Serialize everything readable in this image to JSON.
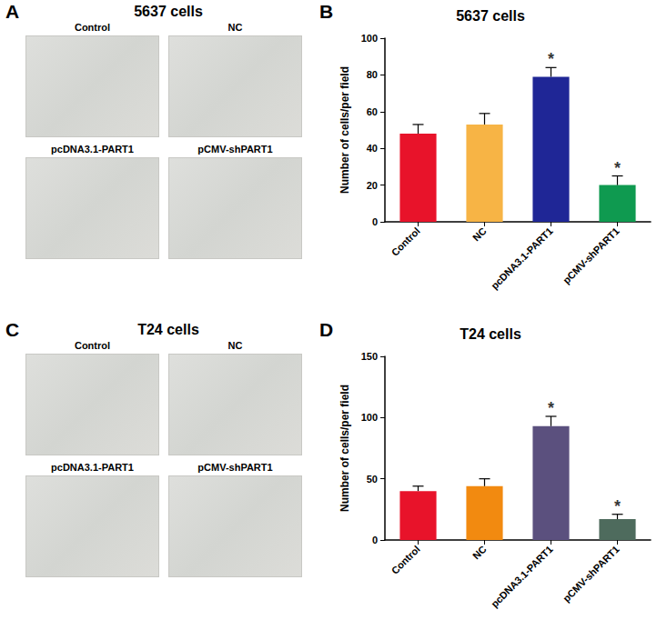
{
  "panels": [
    {
      "letter": "A",
      "title": "5637 cells",
      "images": [
        "Control",
        "NC",
        "pcDNA3.1-PART1",
        "pCMV-shPART1"
      ]
    },
    {
      "letter": "B"
    },
    {
      "letter": "C",
      "title": "T24 cells",
      "images": [
        "Control",
        "NC",
        "pcDNA3.1-PART1",
        "pCMV-shPART1"
      ]
    },
    {
      "letter": "D"
    }
  ],
  "chart_data": [
    {
      "type": "bar",
      "title": "5637 cells",
      "y_label": "Number of cells/per field",
      "categories": [
        "Control",
        "NC",
        "pcDNA3.1-PART1",
        "pCMV-shPART1"
      ],
      "values": [
        48,
        53,
        79,
        20
      ],
      "errors": [
        5,
        6,
        5,
        5
      ],
      "colors": [
        "#e8132a",
        "#f7b445",
        "#1f2696",
        "#0f9a50"
      ],
      "annotations": [
        {
          "category": "pcDNA3.1-PART1",
          "text": "*"
        },
        {
          "category": "pCMV-shPART1",
          "text": "*"
        }
      ],
      "ylim": [
        0,
        100
      ],
      "yticks": [
        0,
        20,
        40,
        60,
        80,
        100
      ],
      "grid": false
    },
    {
      "type": "bar",
      "title": "T24 cells",
      "y_label": "Number of cells/per field",
      "categories": [
        "Control",
        "NC",
        "pcDNA3.1-PART1",
        "pCMV-shPART1"
      ],
      "values": [
        40,
        44,
        93,
        17
      ],
      "errors": [
        4,
        6,
        8,
        4
      ],
      "colors": [
        "#e8132a",
        "#f28a10",
        "#5b507e",
        "#4e6b5d"
      ],
      "annotations": [
        {
          "category": "pcDNA3.1-PART1",
          "text": "*"
        },
        {
          "category": "pCMV-shPART1",
          "text": "*"
        }
      ],
      "ylim": [
        0,
        150
      ],
      "yticks": [
        0,
        50,
        100,
        150
      ],
      "grid": false
    }
  ]
}
